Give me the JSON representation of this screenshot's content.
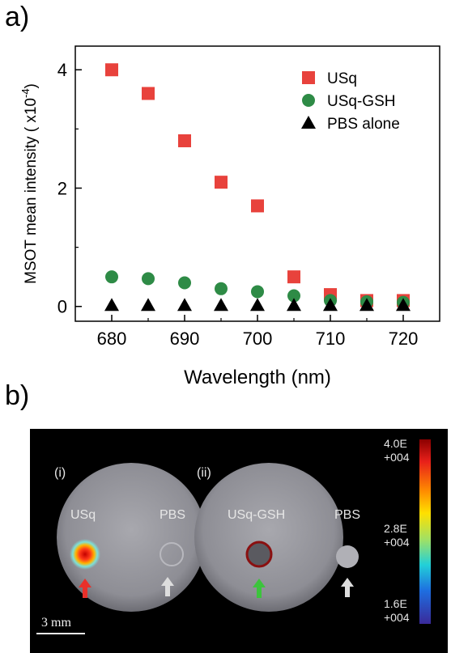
{
  "panel_a_label": "a)",
  "panel_b_label": "b)",
  "chart_data": {
    "type": "scatter",
    "xlabel": "Wavelength (nm)",
    "ylabel_main": "MSOT mean intensity ( x10",
    "ylabel_exp": "-4",
    "ylabel_close": ")",
    "xlim": [
      675,
      725
    ],
    "ylim": [
      -0.25,
      4.4
    ],
    "xticks": [
      680,
      690,
      700,
      710,
      720
    ],
    "yticks": [
      0,
      2,
      4
    ],
    "legend_position": "top-right",
    "series": [
      {
        "name": "USq",
        "marker": "square",
        "color": "#e8423c",
        "x": [
          680,
          685,
          690,
          695,
          700,
          705,
          710,
          715,
          720
        ],
        "y": [
          4.0,
          3.6,
          2.8,
          2.1,
          1.7,
          0.5,
          0.2,
          0.1,
          0.1
        ]
      },
      {
        "name": "USq-GSH",
        "marker": "circle",
        "color": "#2e8b46",
        "x": [
          680,
          685,
          690,
          695,
          700,
          705,
          710,
          715,
          720
        ],
        "y": [
          0.5,
          0.47,
          0.4,
          0.3,
          0.25,
          0.18,
          0.1,
          0.08,
          0.07
        ]
      },
      {
        "name": "PBS alone",
        "marker": "triangle",
        "color": "#000000",
        "x": [
          680,
          685,
          690,
          695,
          700,
          705,
          710,
          715,
          720
        ],
        "y": [
          0.02,
          0.02,
          0.02,
          0.02,
          0.02,
          0.02,
          0.02,
          0.02,
          0.02
        ]
      }
    ]
  },
  "image_panel": {
    "left_label": "(i)",
    "right_label": "(ii)",
    "left_sample_1": "USq",
    "left_sample_2": "PBS",
    "right_sample_1": "USq-GSH",
    "right_sample_2": "PBS",
    "scale_bar": "3 mm",
    "colorbar_top": [
      "4.0E",
      "+004"
    ],
    "colorbar_mid": [
      "2.8E",
      "+004"
    ],
    "colorbar_bottom": [
      "1.6E",
      "+004"
    ],
    "arrow_colors": {
      "usq": "#e8302a",
      "pbs": "#dddddd",
      "gsh": "#3cc43c"
    }
  }
}
